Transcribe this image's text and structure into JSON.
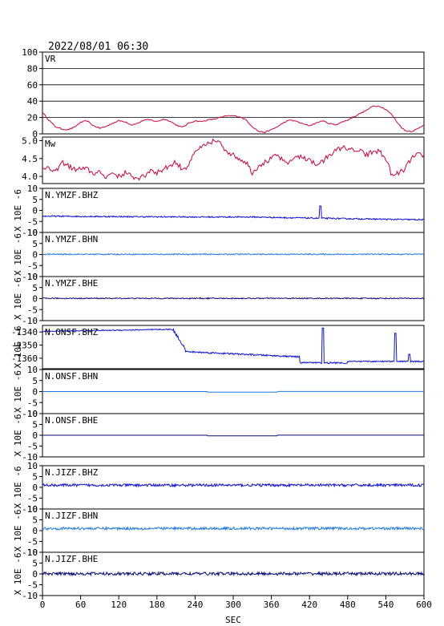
{
  "header": {
    "timestamp": "2022/08/01 06:30"
  },
  "x_axis": {
    "label": "SEC",
    "ticks": [
      "0",
      "60",
      "120",
      "180",
      "240",
      "300",
      "360",
      "420",
      "480",
      "540",
      "600"
    ]
  },
  "colors": {
    "red": "#d0003a",
    "blue": "#1010d8",
    "lightblue": "#1e78e6",
    "navy": "#0a0a7a"
  },
  "chart_data": [
    {
      "type": "line",
      "name": "VR",
      "ylim": [
        0,
        100
      ],
      "ticks": [
        "0",
        "20",
        "40",
        "60",
        "80",
        "100"
      ],
      "grid": true,
      "color": "red",
      "series": [
        {
          "x": [
            0,
            10,
            20,
            30,
            40,
            50,
            60,
            70,
            80,
            90,
            100,
            110,
            120,
            130,
            140,
            150,
            160,
            170,
            180,
            190,
            200,
            210,
            220,
            230,
            240,
            250,
            260,
            270,
            280,
            290,
            300,
            310,
            320,
            330,
            340,
            350,
            360,
            370,
            380,
            390,
            400,
            410,
            420,
            430,
            440,
            450,
            460,
            470,
            480,
            490,
            500,
            510,
            520,
            530,
            540,
            550,
            560,
            570,
            580,
            590,
            600
          ],
          "values": [
            26,
            17,
            9,
            6,
            5,
            8,
            14,
            16,
            10,
            7,
            9,
            13,
            16,
            15,
            11,
            13,
            17,
            17,
            15,
            18,
            16,
            11,
            8,
            13,
            16,
            15,
            17,
            18,
            20,
            22,
            22,
            21,
            17,
            9,
            3,
            2,
            5,
            9,
            14,
            17,
            15,
            12,
            10,
            13,
            16,
            13,
            11,
            14,
            17,
            21,
            25,
            29,
            34,
            34,
            30,
            23,
            12,
            4,
            3,
            6,
            11
          ]
        }
      ]
    },
    {
      "type": "line",
      "name": "Mw",
      "ylim": [
        3.8,
        5.1
      ],
      "ticks": [
        "4.0",
        "4.5",
        "5.0"
      ],
      "grid": false,
      "color": "red",
      "series": [
        {
          "x": [
            0,
            10,
            20,
            30,
            40,
            50,
            60,
            70,
            80,
            90,
            100,
            110,
            120,
            130,
            140,
            150,
            160,
            170,
            180,
            190,
            200,
            210,
            220,
            230,
            240,
            250,
            260,
            270,
            280,
            290,
            300,
            310,
            320,
            330,
            340,
            350,
            360,
            370,
            380,
            390,
            400,
            410,
            420,
            430,
            440,
            450,
            460,
            470,
            480,
            490,
            500,
            510,
            520,
            530,
            540,
            550,
            560,
            570,
            580,
            590,
            600
          ],
          "values": [
            4.3,
            4.2,
            4.1,
            4.4,
            4.3,
            4.2,
            4.2,
            4.2,
            4.1,
            4.1,
            4.0,
            4.1,
            4.0,
            4.1,
            4.0,
            3.95,
            4.0,
            4.2,
            4.1,
            4.2,
            4.3,
            4.4,
            4.2,
            4.3,
            4.7,
            4.8,
            4.9,
            5.0,
            4.9,
            4.7,
            4.6,
            4.5,
            4.4,
            4.1,
            4.3,
            4.4,
            4.5,
            4.6,
            4.4,
            4.4,
            4.6,
            4.5,
            4.5,
            4.3,
            4.4,
            4.6,
            4.7,
            4.8,
            4.8,
            4.7,
            4.7,
            4.6,
            4.7,
            4.7,
            4.5,
            4.0,
            4.1,
            4.2,
            4.5,
            4.6,
            4.6
          ]
        }
      ]
    },
    {
      "type": "line",
      "name": "N.YMZF.BHZ",
      "ylim": [
        -10,
        10
      ],
      "ticks": [
        "-10",
        "-5",
        "0",
        "5",
        "10"
      ],
      "unit": "X 10E -6",
      "color": "blue",
      "trace": "bhz_drift"
    },
    {
      "type": "line",
      "name": "N.YMZF.BHN",
      "ylim": [
        -10,
        10
      ],
      "ticks": [
        "-10",
        "-5",
        "0",
        "5",
        "10"
      ],
      "unit": "X 10E -6",
      "color": "lightblue",
      "trace": "flat_small"
    },
    {
      "type": "line",
      "name": "N.YMZF.BHE",
      "ylim": [
        -10,
        10
      ],
      "ticks": [
        "-10",
        "-5",
        "0",
        "5",
        "10"
      ],
      "unit": "X 10E -6",
      "color": "navy",
      "trace": "flat_small"
    },
    {
      "type": "line",
      "name": "N.ONSF.BHZ",
      "ylim": [
        -1368,
        -1335
      ],
      "ticks": [
        "-1360",
        "-1350",
        "-1340"
      ],
      "unit": "X 10E -6",
      "color": "blue",
      "trace": "onsf_step"
    },
    {
      "type": "line",
      "name": "N.ONSF.BHN",
      "ylim": [
        -10,
        10
      ],
      "ticks": [
        "-10",
        "-5",
        "0",
        "5",
        "10"
      ],
      "unit": "X 10E -6",
      "color": "lightblue",
      "trace": "flat_line"
    },
    {
      "type": "line",
      "name": "N.ONSF.BHE",
      "ylim": [
        -10,
        10
      ],
      "ticks": [
        "-10",
        "-5",
        "0",
        "5",
        "10"
      ],
      "unit": "X 10E -6",
      "color": "navy",
      "trace": "flat_line"
    },
    {
      "type": "line",
      "name": "N.JIZF.BHZ",
      "ylim": [
        -10,
        10
      ],
      "ticks": [
        "-10",
        "-5",
        "0",
        "5",
        "10"
      ],
      "unit": "X 10E -6",
      "color": "blue",
      "trace": "noise_pos"
    },
    {
      "type": "line",
      "name": "N.JIZF.BHN",
      "ylim": [
        -10,
        10
      ],
      "ticks": [
        "-10",
        "-5",
        "0",
        "5",
        "10"
      ],
      "unit": "X 10E -6",
      "color": "lightblue",
      "trace": "noise_pos"
    },
    {
      "type": "line",
      "name": "N.JIZF.BHE",
      "ylim": [
        -10,
        10
      ],
      "ticks": [
        "-10",
        "-5",
        "0",
        "5",
        "10"
      ],
      "unit": "X 10E -6",
      "color": "navy",
      "trace": "noise_zero"
    }
  ]
}
